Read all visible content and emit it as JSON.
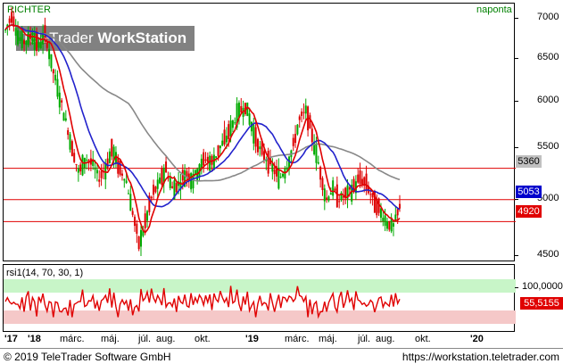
{
  "header": {
    "instrument": "RICHTER",
    "period": "naponta"
  },
  "watermark": {
    "brand": "TeleTrader",
    "product": "WorkStation"
  },
  "price_axis": {
    "ticks": [
      "7000",
      "6500",
      "6000",
      "5500",
      "5000",
      "4500"
    ],
    "badges": [
      {
        "label": "5360",
        "bg": "#c0c0c0",
        "fg": "#000000"
      },
      {
        "label": "5053",
        "bg": "#0000cc",
        "fg": "#ffffff"
      },
      {
        "label": "4920",
        "bg": "#e00000",
        "fg": "#ffffff"
      }
    ]
  },
  "rsi": {
    "title": "rsi1(14, 70, 30, 1)",
    "ticks": [
      "100,0000"
    ],
    "badge": {
      "label": "55,5155",
      "bg": "#e00000",
      "fg": "#ffffff"
    },
    "overbought_color": "#c8f5c8",
    "oversold_color": "#f5c8c8"
  },
  "date_axis": {
    "labels": [
      "'17",
      "'18",
      "márc.",
      "máj.",
      "júl.",
      "aug.",
      "okt.",
      "'19",
      "márc.",
      "máj.",
      "júl.",
      "aug.",
      "okt.",
      "'20"
    ]
  },
  "footer": {
    "copyright": "© 2019 TeleTrader Software GmbH",
    "link": "https://workstation.teletrader.com"
  },
  "colors": {
    "candle_up": "#00aa00",
    "candle_down": "#dd0000",
    "ma_fast": "#e00000",
    "ma_mid": "#2222cc",
    "ma_slow": "#888888",
    "hline": "#e00000"
  },
  "chart_data": {
    "type": "line",
    "y_scale": "log",
    "ylim": [
      4450,
      7200
    ],
    "horizontal_lines": [
      5300,
      5000,
      4800
    ],
    "price_series": [
      6850,
      7050,
      6750,
      6700,
      6800,
      6650,
      6800,
      6400,
      6100,
      5800,
      5500,
      5250,
      5400,
      5350,
      5200,
      5300,
      5500,
      5300,
      5200,
      4900,
      4600,
      4800,
      5050,
      5150,
      5300,
      5100,
      5150,
      5250,
      5200,
      5300,
      5400,
      5350,
      5500,
      5600,
      5750,
      5900,
      5950,
      5700,
      5500,
      5400,
      5300,
      5200,
      5300,
      5500,
      5800,
      5900,
      5600,
      5300,
      5000,
      5100,
      5000,
      5050,
      5100,
      5200,
      5150,
      5000,
      4900,
      4800,
      4750,
      4920
    ],
    "moving_averages": [
      {
        "period": "fast",
        "last": 4920
      },
      {
        "period": "mid",
        "last": 5053
      },
      {
        "period": "slow",
        "last": 5360
      }
    ]
  }
}
